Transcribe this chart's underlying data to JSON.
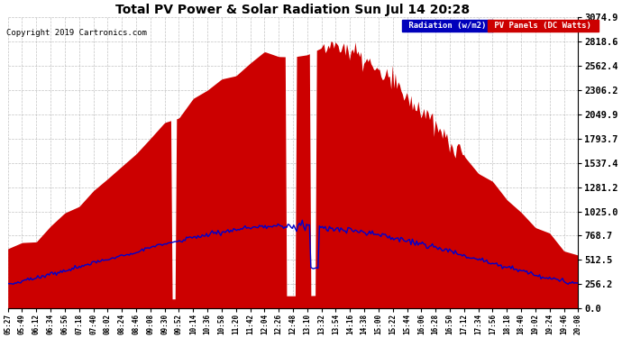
{
  "title": "Total PV Power & Solar Radiation Sun Jul 14 20:28",
  "copyright": "Copyright 2019 Cartronics.com",
  "legend_radiation": "Radiation (w/m2)",
  "legend_pv": "PV Panels (DC Watts)",
  "y_max": 3074.9,
  "y_ticks": [
    0.0,
    256.2,
    512.5,
    768.7,
    1025.0,
    1281.2,
    1537.4,
    1793.7,
    2049.9,
    2306.2,
    2562.4,
    2818.6,
    3074.9
  ],
  "background_color": "#ffffff",
  "plot_bg_color": "#ffffff",
  "grid_color": "#aaaaaa",
  "red_color": "#cc0000",
  "blue_color": "#0000cc",
  "x_labels": [
    "05:27",
    "05:49",
    "06:12",
    "06:34",
    "06:56",
    "07:18",
    "07:40",
    "08:02",
    "08:24",
    "08:46",
    "09:08",
    "09:30",
    "09:52",
    "10:14",
    "10:36",
    "10:58",
    "11:20",
    "11:42",
    "12:04",
    "12:26",
    "12:48",
    "13:10",
    "13:32",
    "13:54",
    "14:16",
    "14:38",
    "15:00",
    "15:22",
    "15:44",
    "16:06",
    "16:28",
    "16:50",
    "17:12",
    "17:34",
    "17:56",
    "18:18",
    "18:40",
    "19:02",
    "19:24",
    "19:46",
    "20:08"
  ]
}
